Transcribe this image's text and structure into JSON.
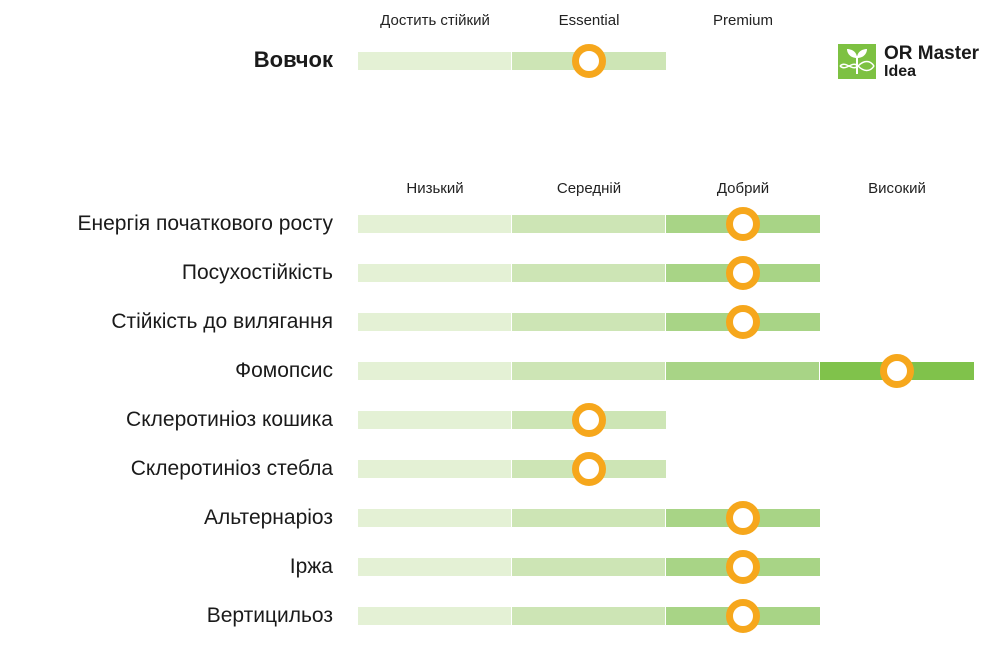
{
  "colors": {
    "level1": "#e4f1d5",
    "level2": "#cde5b5",
    "level3": "#a8d486",
    "level4": "#80c24b",
    "marker": "#f6a71c",
    "logo_green": "#7dc142"
  },
  "logo": {
    "line1": "OR Master",
    "line2": "Idea",
    "icon": "sprout-dna-icon"
  },
  "chart_data": [
    {
      "type": "rating-bar",
      "levels": [
        "Достить стійкий",
        "Essential",
        "Premium"
      ],
      "rows": [
        {
          "label": "Вовчок",
          "segments": 2,
          "value": 1.5
        }
      ]
    },
    {
      "type": "rating-bar",
      "levels": [
        "Низький",
        "Середній",
        "Добрий",
        "Високий"
      ],
      "rows": [
        {
          "label": "Енергія початкового росту",
          "segments": 3,
          "value": 2.5
        },
        {
          "label": "Посухостійкість",
          "segments": 3,
          "value": 2.5
        },
        {
          "label": "Стійкість до вилягання",
          "segments": 3,
          "value": 2.5
        },
        {
          "label": "Фомопсис",
          "segments": 4,
          "value": 3.5
        },
        {
          "label": "Склеротиніоз кошика",
          "segments": 2,
          "value": 1.5
        },
        {
          "label": "Склеротиніоз стебла",
          "segments": 2,
          "value": 1.5
        },
        {
          "label": "Альтернаріоз",
          "segments": 3,
          "value": 2.5
        },
        {
          "label": "Іржа",
          "segments": 3,
          "value": 2.5
        },
        {
          "label": "Вертицильоз",
          "segments": 3,
          "value": 2.5
        }
      ]
    }
  ]
}
